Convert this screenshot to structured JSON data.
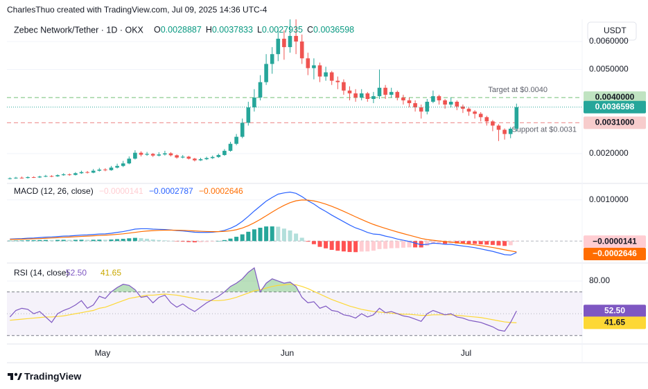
{
  "header": "CharlesThuo created with TradingView.com, Jul 09, 2025 14:36 UTC-4",
  "footer": "TradingView",
  "chart_data": [
    {
      "type": "candlestick",
      "title": "Zebec Network/Tether · 1D · OKX",
      "currency": "USDT",
      "ohlc_labels": [
        "O",
        "H",
        "L",
        "C"
      ],
      "up_color": "#26a69a",
      "down_color": "#ef5350",
      "ylim": [
        0.00101,
        0.00679
      ],
      "yticks": [
        {
          "value": 0.002,
          "label": "0.0020000"
        },
        {
          "value": 0.005,
          "label": "0.0050000"
        },
        {
          "value": 0.006,
          "label": "0.0060000"
        }
      ],
      "grid": true,
      "levels": [
        {
          "text": "Target at $0.0040",
          "value": 0.004,
          "label": "0.0040000",
          "color": "#81c784"
        },
        {
          "text": "Support at $0.0031",
          "value": 0.0031,
          "label": "0.0031000",
          "color": "#ef9a9a"
        }
      ],
      "open": [
        0.0011,
        0.00112,
        0.00114,
        0.00113,
        0.00116,
        0.00115,
        0.00118,
        0.0012,
        0.00119,
        0.00123,
        0.00126,
        0.00124,
        0.0013,
        0.00134,
        0.00132,
        0.00139,
        0.00143,
        0.00141,
        0.0015,
        0.00156,
        0.00165,
        0.00182,
        0.00203,
        0.00196,
        0.00199,
        0.00193,
        0.00197,
        0.00201,
        0.00194,
        0.00186,
        0.00189,
        0.00182,
        0.00176,
        0.0018,
        0.00184,
        0.00188,
        0.00195,
        0.0021,
        0.00235,
        0.0026,
        0.0031,
        0.00365,
        0.004,
        0.00455,
        0.0052,
        0.00555,
        0.0061,
        0.0058,
        0.0062,
        0.006,
        0.0054,
        0.00505,
        0.00515,
        0.00475,
        0.0049,
        0.0046,
        0.00455,
        0.00425,
        0.00415,
        0.004,
        0.00415,
        0.00395,
        0.00405,
        0.00435,
        0.0041,
        0.0042,
        0.004,
        0.0039,
        0.0038,
        0.00365,
        0.0035,
        0.00385,
        0.00405,
        0.0039,
        0.00375,
        0.00385,
        0.00368,
        0.0036,
        0.0035,
        0.00342,
        0.0033,
        0.00315,
        0.003,
        0.00285,
        0.0027,
        0.0028887
      ],
      "high": [
        0.00115,
        0.00117,
        0.00118,
        0.00119,
        0.00119,
        0.00121,
        0.00124,
        0.00123,
        0.00126,
        0.0013,
        0.00129,
        0.00134,
        0.00139,
        0.00138,
        0.00145,
        0.00149,
        0.00148,
        0.00156,
        0.00164,
        0.00174,
        0.0019,
        0.00212,
        0.00208,
        0.00206,
        0.00202,
        0.00205,
        0.0021,
        0.00205,
        0.00197,
        0.00195,
        0.00192,
        0.00185,
        0.00185,
        0.00189,
        0.00193,
        0.002,
        0.00216,
        0.00242,
        0.0027,
        0.00325,
        0.00385,
        0.0043,
        0.0048,
        0.00555,
        0.0058,
        0.0065,
        0.0064,
        0.00679,
        0.00679,
        0.00625,
        0.0056,
        0.0054,
        0.00525,
        0.0051,
        0.00495,
        0.00475,
        0.00465,
        0.0044,
        0.0043,
        0.0043,
        0.0042,
        0.0042,
        0.005,
        0.00445,
        0.00435,
        0.00425,
        0.0041,
        0.004,
        0.0039,
        0.00375,
        0.00395,
        0.00425,
        0.0041,
        0.00395,
        0.004,
        0.0039,
        0.00375,
        0.00365,
        0.00355,
        0.00348,
        0.00335,
        0.0032,
        0.00305,
        0.0029,
        0.00295,
        0.0037833
      ],
      "low": [
        0.00108,
        0.0011,
        0.00111,
        0.00111,
        0.00113,
        0.00113,
        0.00116,
        0.00116,
        0.00117,
        0.00121,
        0.00121,
        0.00122,
        0.00128,
        0.00129,
        0.0013,
        0.00136,
        0.00137,
        0.00139,
        0.00147,
        0.00152,
        0.00162,
        0.00179,
        0.0019,
        0.00192,
        0.00188,
        0.0019,
        0.00193,
        0.0019,
        0.00182,
        0.00183,
        0.00179,
        0.00172,
        0.00174,
        0.00177,
        0.00181,
        0.00185,
        0.00192,
        0.00207,
        0.0023,
        0.00255,
        0.003,
        0.0035,
        0.0039,
        0.00445,
        0.00485,
        0.0053,
        0.00535,
        0.0056,
        0.00555,
        0.0052,
        0.0048,
        0.00465,
        0.00455,
        0.0046,
        0.00445,
        0.0043,
        0.0041,
        0.0039,
        0.00385,
        0.0039,
        0.00385,
        0.0038,
        0.00395,
        0.00395,
        0.004,
        0.0039,
        0.00375,
        0.00365,
        0.0035,
        0.00325,
        0.0034,
        0.0038,
        0.00375,
        0.0036,
        0.00365,
        0.00355,
        0.00345,
        0.00335,
        0.00325,
        0.00315,
        0.003,
        0.0028,
        0.00245,
        0.0025,
        0.00255,
        0.0027935
      ],
      "close": [
        0.00112,
        0.00114,
        0.00113,
        0.00116,
        0.00115,
        0.00118,
        0.0012,
        0.00119,
        0.00123,
        0.00126,
        0.00124,
        0.0013,
        0.00134,
        0.00132,
        0.00139,
        0.00143,
        0.00141,
        0.0015,
        0.00156,
        0.00165,
        0.00182,
        0.00203,
        0.00196,
        0.00199,
        0.00193,
        0.00197,
        0.00201,
        0.00194,
        0.00186,
        0.00189,
        0.00182,
        0.00176,
        0.0018,
        0.00184,
        0.00188,
        0.00195,
        0.0021,
        0.00235,
        0.0026,
        0.0031,
        0.00365,
        0.004,
        0.00455,
        0.0052,
        0.00555,
        0.0061,
        0.0058,
        0.0062,
        0.006,
        0.0054,
        0.00505,
        0.00515,
        0.00475,
        0.0049,
        0.0046,
        0.00455,
        0.00425,
        0.00415,
        0.004,
        0.00415,
        0.00395,
        0.00405,
        0.00435,
        0.0041,
        0.0042,
        0.004,
        0.0039,
        0.0038,
        0.00365,
        0.0035,
        0.00385,
        0.00405,
        0.0039,
        0.00375,
        0.00385,
        0.00368,
        0.0036,
        0.0035,
        0.00342,
        0.0033,
        0.00315,
        0.003,
        0.00285,
        0.0027,
        0.0028887,
        0.0036598
      ]
    },
    {
      "type": "macd",
      "title": "MACD (12, 26, close)",
      "ylim": [
        -0.0005,
        0.00135
      ],
      "yticks": [
        {
          "value": 0.001,
          "label": "0.0010000"
        }
      ],
      "histogram": {
        "colors": [
          "#26a69a",
          "#b2dfdb",
          "#ffcdd2",
          "#ff5252"
        ],
        "value_label": "−0.0000141",
        "values": [
          1e-05,
          1.3e-05,
          1.5e-05,
          2e-05,
          2e-05,
          2.5e-05,
          2.7e-05,
          2.5e-05,
          2.8e-05,
          3e-05,
          2.8e-05,
          3e-05,
          3.2e-05,
          3e-05,
          3.2e-05,
          3.4e-05,
          3.2e-05,
          3.8e-05,
          4.7e-05,
          5.4e-05,
          6.7e-05,
          7.8e-05,
          7e-05,
          5.6e-05,
          3.7e-05,
          2.5e-05,
          1.6e-05,
          5e-06,
          -8e-06,
          -1.5e-05,
          -2.4e-05,
          -3.1e-05,
          -2.9e-05,
          -2.3e-05,
          -1.5e-05,
          0,
          2.4e-05,
          6e-05,
          0.000104,
          0.000163,
          0.000226,
          0.000285,
          0.000324,
          0.000355,
          0.000356,
          0.000349,
          0.000303,
          0.000258,
          0.000182,
          8.1e-05,
          -1.5e-05,
          -7.6e-05,
          -0.000141,
          -0.000177,
          -0.000214,
          -0.000235,
          -0.000252,
          -0.000266,
          -0.000269,
          -0.000255,
          -0.000252,
          -0.000234,
          -0.000195,
          -0.000188,
          -0.000174,
          -0.000171,
          -0.000161,
          -0.000153,
          -0.000154,
          -0.000155,
          -0.000116,
          -6.9e-05,
          -6.3e-05,
          -6.6e-05,
          -5.3e-05,
          -5.8e-05,
          -6.2e-05,
          -6.6e-05,
          -6.9e-05,
          -7.9e-05,
          -8.7e-05,
          -9.4e-05,
          -0.000107,
          -0.000118,
          -0.000102,
          -1.41e-05
        ]
      },
      "macd": {
        "color": "#2962ff",
        "value_label": "−0.0002787",
        "values": [
          5e-05,
          5.5e-05,
          6e-05,
          7e-05,
          7.5e-05,
          8.5e-05,
          9.5e-05,
          0.0001,
          0.00011,
          0.00012,
          0.000125,
          0.000135,
          0.000145,
          0.00015,
          0.00016,
          0.00017,
          0.000175,
          0.00019,
          0.00021,
          0.00023,
          0.00026,
          0.00029,
          0.0003,
          0.0003,
          0.00029,
          0.000285,
          0.00028,
          0.00027,
          0.000255,
          0.000245,
          0.00023,
          0.000215,
          0.00021,
          0.00021,
          0.000215,
          0.00023,
          0.00026,
          0.00031,
          0.00038,
          0.00048,
          0.0006,
          0.00073,
          0.00085,
          0.00097,
          0.00106,
          0.00114,
          0.00117,
          0.00119,
          0.00116,
          0.00108,
          0.00098,
          0.0009,
          0.0008,
          0.00072,
          0.00063,
          0.00055,
          0.00047,
          0.00039,
          0.00032,
          0.00027,
          0.00021,
          0.00017,
          0.00016,
          0.00012,
          9e-05,
          5e-05,
          2e-05,
          -1e-05,
          -5e-05,
          -9e-05,
          -8e-05,
          -5e-05,
          -6e-05,
          -8e-05,
          -8e-05,
          -0.0001,
          -0.00012,
          -0.00014,
          -0.00016,
          -0.00019,
          -0.00022,
          -0.00025,
          -0.00029,
          -0.00033,
          -0.00034,
          -0.0002787
        ]
      },
      "signal": {
        "color": "#ff6d00",
        "value_label": "−0.0002646",
        "values": [
          4e-05,
          4.2e-05,
          4.5e-05,
          5e-05,
          5.5e-05,
          6e-05,
          6.8e-05,
          7.5e-05,
          8.2e-05,
          9e-05,
          9.7e-05,
          0.000105,
          0.000113,
          0.00012,
          0.000128,
          0.000136,
          0.000143,
          0.000152,
          0.000163,
          0.000176,
          0.000193,
          0.000212,
          0.00023,
          0.000244,
          0.000253,
          0.00026,
          0.000264,
          0.000265,
          0.000263,
          0.00026,
          0.000254,
          0.000246,
          0.000239,
          0.000233,
          0.00023,
          0.00023,
          0.000236,
          0.00025,
          0.000276,
          0.000317,
          0.000374,
          0.000445,
          0.000526,
          0.000615,
          0.000704,
          0.000791,
          0.000867,
          0.000932,
          0.000978,
          0.000999,
          0.000995,
          0.000976,
          0.000941,
          0.000897,
          0.000844,
          0.000785,
          0.000722,
          0.000656,
          0.000589,
          0.000525,
          0.000462,
          0.000404,
          0.000355,
          0.000308,
          0.000264,
          0.000221,
          0.000181,
          0.000143,
          0.000104,
          6.5e-05,
          3.6e-05,
          1.9e-05,
          3e-06,
          -1.4e-05,
          -2.7e-05,
          -4.2e-05,
          -5.8e-05,
          -7.4e-05,
          -9.1e-05,
          -0.000111,
          -0.000133,
          -0.000156,
          -0.000183,
          -0.000212,
          -0.000238,
          -0.0002646
        ]
      }
    },
    {
      "type": "rsi",
      "title": "RSI (14, close)",
      "ylim": [
        23.5,
        95.2
      ],
      "yticks": [
        {
          "value": 80,
          "label": "80.00"
        }
      ],
      "band": [
        30,
        70
      ],
      "midline": 50,
      "band_color": "#7e57c2",
      "overbought_color": "#66bb6a",
      "categories": [
        null,
        null,
        null,
        null,
        null,
        null,
        null,
        null,
        null,
        null,
        null,
        null,
        null,
        null,
        null,
        null,
        "May",
        null,
        null,
        null,
        null,
        null,
        null,
        null,
        null,
        null,
        null,
        null,
        null,
        null,
        null,
        null,
        null,
        null,
        null,
        null,
        null,
        null,
        null,
        null,
        null,
        null,
        null,
        null,
        null,
        null,
        null,
        "Jun",
        null,
        null,
        null,
        null,
        null,
        null,
        null,
        null,
        null,
        null,
        null,
        null,
        null,
        null,
        null,
        null,
        null,
        null,
        null,
        null,
        null,
        null,
        null,
        null,
        null,
        null,
        null,
        null,
        null,
        "Jul",
        null,
        null,
        null,
        null,
        null,
        null,
        null,
        null
      ],
      "rsi": {
        "color": "#7e57c2",
        "value_label": "52.50",
        "values": [
          47,
          53,
          55,
          54,
          50,
          52,
          47,
          42,
          50,
          53,
          55,
          58,
          62,
          55,
          58,
          66,
          64,
          70,
          74,
          77,
          76,
          72,
          65,
          66,
          60,
          65,
          67,
          60,
          56,
          59,
          55,
          52,
          56,
          60,
          63,
          66,
          70,
          75,
          78,
          82,
          88,
          92,
          70,
          78,
          82,
          80,
          78,
          79,
          75,
          65,
          60,
          61,
          55,
          57,
          53,
          52,
          49,
          48,
          46,
          50,
          47,
          49,
          55,
          51,
          52,
          50,
          48,
          47,
          45,
          43,
          50,
          53,
          51,
          49,
          50,
          47,
          46,
          44,
          43,
          42,
          40,
          38,
          35,
          34,
          42,
          52.5
        ]
      },
      "ma": {
        "color": "#fdd835",
        "value_label": "41.65",
        "values": [
          44,
          44.5,
          45,
          45.5,
          46,
          46.5,
          47,
          47,
          47.5,
          48,
          49,
          50,
          51,
          52,
          53,
          55,
          56,
          58,
          60,
          62,
          64,
          65,
          66,
          67,
          67,
          67.5,
          68,
          67.5,
          67,
          66,
          65,
          64,
          63,
          62.5,
          62,
          62,
          62.5,
          63.5,
          65,
          67,
          69,
          71,
          72,
          73.5,
          75,
          76,
          76.5,
          77,
          76.5,
          75,
          73,
          70.5,
          68,
          65.5,
          63,
          61,
          59,
          57,
          55.5,
          54,
          53,
          52,
          51.5,
          51,
          50.5,
          50,
          49.5,
          49.5,
          49,
          48.5,
          48.5,
          49,
          49,
          49,
          49,
          48.5,
          48,
          47.5,
          47,
          46.5,
          45.5,
          44.5,
          43.5,
          42.5,
          42,
          41.65
        ]
      }
    }
  ]
}
